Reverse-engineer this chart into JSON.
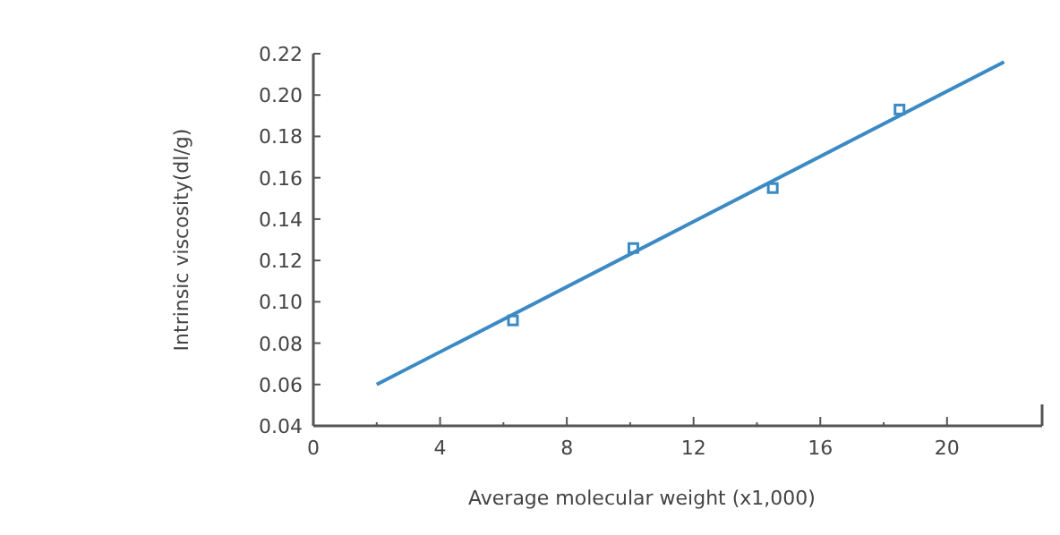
{
  "chart_data": {
    "type": "scatter",
    "xlabel": "Average molecular weight (x1,000)",
    "ylabel": "Intrinsic viscosity(dl/g)",
    "xlim": [
      0,
      23
    ],
    "xticks": [
      0,
      {
        "value": 2,
        "label": null
      },
      4,
      {
        "value": 6,
        "label": null
      },
      8,
      {
        "value": 10,
        "label": null
      },
      12,
      {
        "value": 14,
        "label": null
      },
      16,
      {
        "value": 18,
        "label": null
      },
      20
    ],
    "ylim": [
      0.04,
      0.22
    ],
    "yticks": [
      {
        "value": 0.04,
        "label": "0.04"
      },
      {
        "value": 0.06,
        "label": "0.06"
      },
      {
        "value": 0.08,
        "label": "0.08"
      },
      {
        "value": 0.1,
        "label": "0.10"
      },
      {
        "value": 0.12,
        "label": "0.12"
      },
      {
        "value": 0.14,
        "label": "0.14"
      },
      {
        "value": 0.16,
        "label": "0.16"
      },
      {
        "value": 0.18,
        "label": "0.18"
      },
      {
        "value": 0.2,
        "label": "0.20"
      },
      {
        "value": 0.22,
        "label": "0.22"
      }
    ],
    "grid": false,
    "marker": "square",
    "series": [
      {
        "color": "#3c8ac4",
        "x": [
          6.3,
          10.1,
          14.5,
          18.5
        ],
        "values": [
          0.091,
          0.126,
          0.155,
          0.193
        ]
      },
      {
        "type": "line",
        "color": "#3c8ac4",
        "x": [
          2,
          21.8
        ],
        "values": [
          0.06,
          0.216
        ],
        "marker": "none"
      }
    ]
  }
}
